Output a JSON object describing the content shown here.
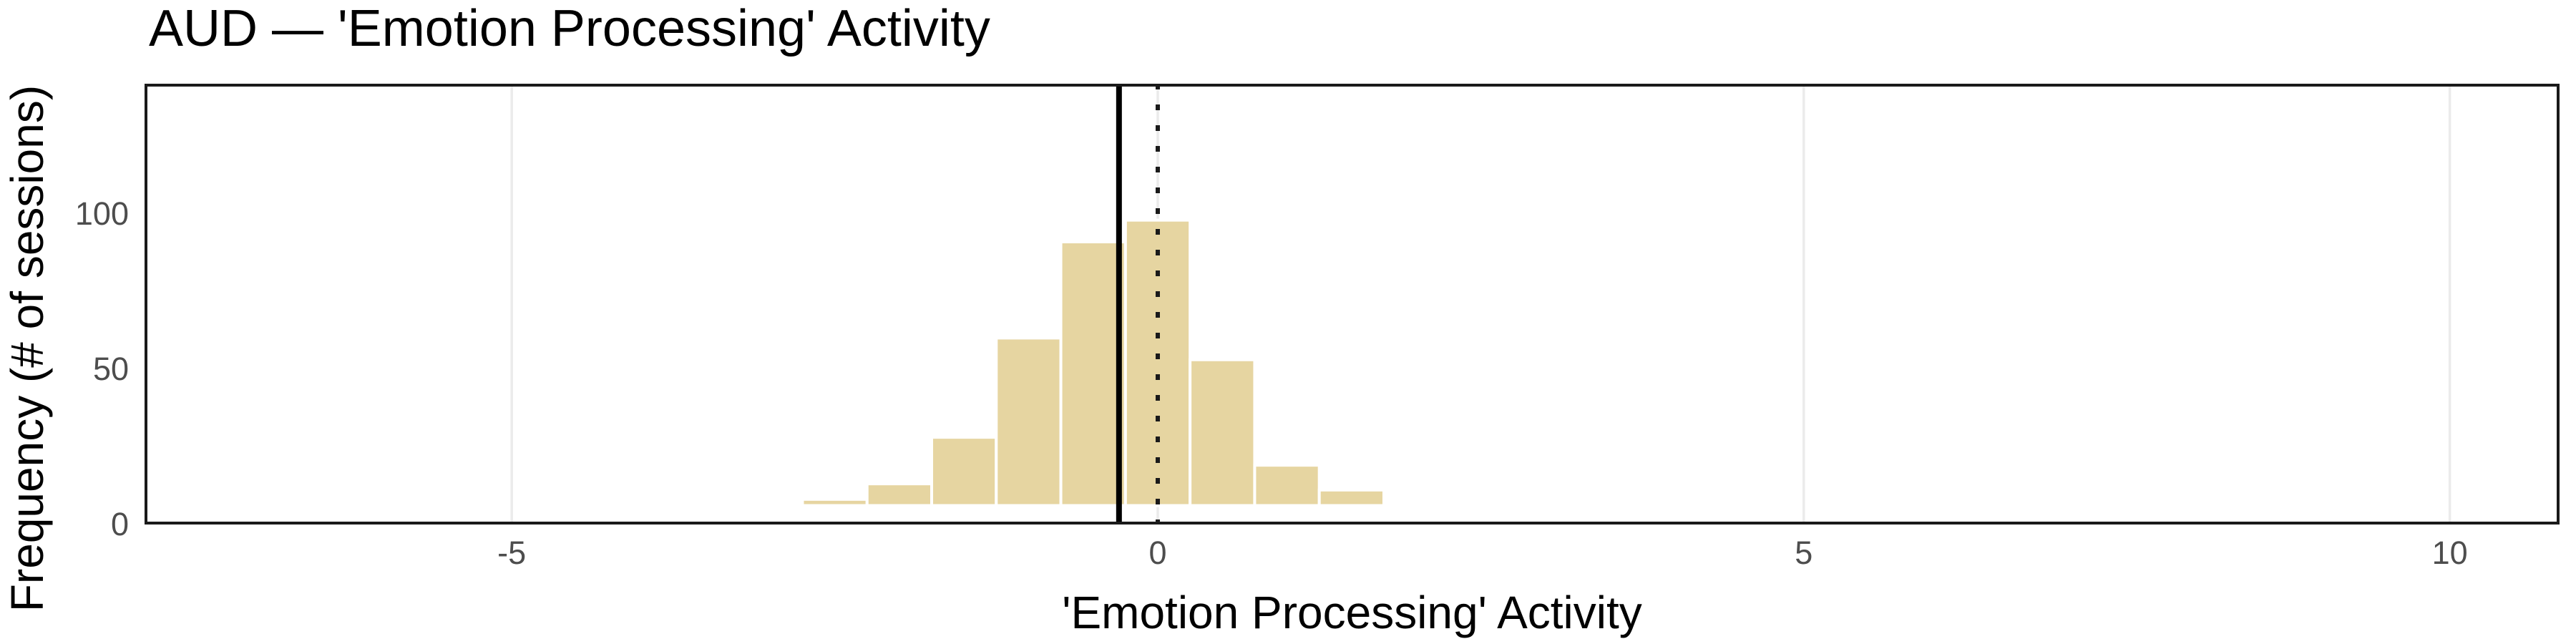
{
  "chart_data": {
    "type": "bar",
    "subtype": "histogram",
    "title": "AUD — 'Emotion Processing' Activity",
    "xlabel": "'Emotion Processing' Activity",
    "ylabel": "Frequency (# of sessions)",
    "bin_centers": [
      -2.5,
      -2.0,
      -1.5,
      -1.0,
      -0.5,
      0.0,
      0.5,
      1.0,
      1.5
    ],
    "values": [
      2,
      7,
      22,
      54,
      85,
      92,
      47,
      13,
      5
    ],
    "binwidth": 0.5,
    "x_ticks": [
      -5,
      0,
      5,
      10
    ],
    "y_ticks": [
      0,
      50,
      100
    ],
    "xlim": [
      -7.85,
      10.85
    ],
    "ylim": [
      -6.5,
      136
    ],
    "grid": "vertical-major-only",
    "legend_position": "none",
    "reference_lines": {
      "mean_solid_line_x": -0.3,
      "zero_dotted_line_x": 0
    },
    "colors": {
      "bar_fill": "#E6D5A1",
      "bar_border": "#FFFFFF",
      "panel_border": "#1A1A1A",
      "gridline": "#EBEBEB",
      "axis_text": "#4D4D4D",
      "title_text": "#000000",
      "mean_line": "#000000",
      "zero_line": "#1A1A1A",
      "background": "#FFFFFF"
    }
  }
}
